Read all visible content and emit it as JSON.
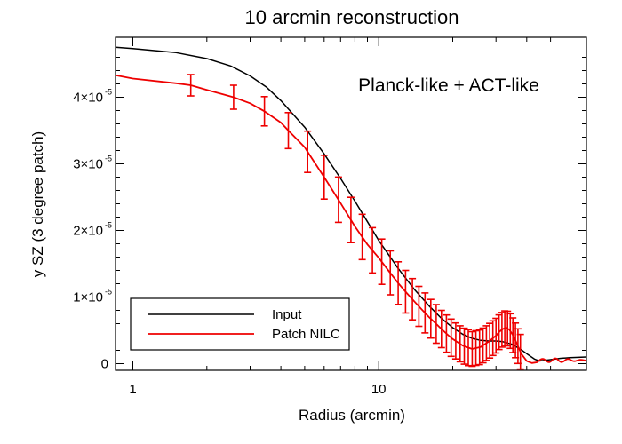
{
  "chart_data": {
    "type": "line",
    "title": "10 arcmin reconstruction",
    "xlabel": "Radius (arcmin)",
    "ylabel": "y SZ (3 degree patch)",
    "xscale": "log",
    "xlim": [
      0.85,
      70
    ],
    "ylim": [
      -1e-06,
      4.9e-05
    ],
    "x_ticks": [
      {
        "value": 1,
        "label": "1"
      },
      {
        "value": 10,
        "label": "10"
      }
    ],
    "y_ticks": [
      {
        "value": 0,
        "mantissa": "0",
        "exp": ""
      },
      {
        "value": 1e-05,
        "mantissa": "1×10",
        "exp": "-5"
      },
      {
        "value": 2e-05,
        "mantissa": "2×10",
        "exp": "-5"
      },
      {
        "value": 3e-05,
        "mantissa": "3×10",
        "exp": "-5"
      },
      {
        "value": 4e-05,
        "mantissa": "4×10",
        "exp": "-5"
      }
    ],
    "annotation": "Planck-like + ACT-like",
    "legend_position": "bottom-left",
    "series": [
      {
        "name": "Input",
        "color": "#000000",
        "x": [
          0.85,
          1.0,
          1.5,
          2.0,
          2.5,
          3.0,
          3.5,
          4.0,
          5.0,
          6.0,
          7.0,
          8.0,
          9.0,
          10.0,
          12.0,
          14.0,
          16.0,
          18.0,
          20.0,
          22.0,
          24.0,
          26.0,
          28.0,
          30.0,
          32.0,
          35.0,
          38.0,
          40.0,
          43.0,
          45.0,
          50.0,
          55.0,
          60.0,
          70.0
        ],
        "y": [
          4.75e-05,
          4.73e-05,
          4.67e-05,
          4.58e-05,
          4.47e-05,
          4.32e-05,
          4.15e-05,
          3.95e-05,
          3.55e-05,
          3.15e-05,
          2.78e-05,
          2.44e-05,
          2.13e-05,
          1.85e-05,
          1.43e-05,
          1.11e-05,
          8.7e-06,
          6.8e-06,
          5.4e-06,
          4.4e-06,
          3.8e-06,
          3.5e-06,
          3.4e-06,
          3.4e-06,
          3.3e-06,
          2.9e-06,
          2.1e-06,
          1.5e-06,
          7e-07,
          4e-07,
          6e-07,
          8e-07,
          9e-07,
          1e-06
        ]
      },
      {
        "name": "Patch NILC",
        "color": "#ee0000",
        "x": [
          0.85,
          1.0,
          1.5,
          1.72,
          2.0,
          2.57,
          3.0,
          3.43,
          4.0,
          4.29,
          5.0,
          5.14,
          6.0,
          7.0,
          8.0,
          9.0,
          10.0,
          11.0,
          12.0,
          13.0,
          14.0,
          15.0,
          16.0,
          17.0,
          18.0,
          19.0,
          20.0,
          22.0,
          24.0,
          26.0,
          28.0,
          30.0,
          31.0,
          32.0,
          33.0,
          34.0,
          35.0,
          36.0,
          38.0,
          40.0,
          42.0,
          44.0,
          47.0,
          50.0,
          53.0,
          55.0,
          57.0,
          60.0,
          65.0,
          70.0
        ],
        "y": [
          4.33e-05,
          4.28e-05,
          4.21e-05,
          4.18e-05,
          4.11e-05,
          4e-05,
          3.91e-05,
          3.79e-05,
          3.62e-05,
          3.5e-05,
          3.25e-05,
          3.18e-05,
          2.8e-05,
          2.41e-05,
          2.06e-05,
          1.79e-05,
          1.59e-05,
          1.39e-05,
          1.21e-05,
          1.06e-05,
          9.3e-06,
          8.1e-06,
          7e-06,
          6.1e-06,
          5.2e-06,
          4.4e-06,
          3.7e-06,
          2.7e-06,
          2.2e-06,
          2.5e-06,
          3.3e-06,
          4.2e-06,
          4.8e-06,
          5.2e-06,
          5.4e-06,
          5.1e-06,
          4.4e-06,
          3.5e-06,
          1.5e-06,
          4e-07,
          1e-07,
          2e-07,
          4e-07,
          6e-07,
          5e-07,
          4e-07,
          9e-07,
          8e-07,
          3e-07,
          5e-07
        ]
      }
    ],
    "error_bars": {
      "series": "Patch NILC",
      "x": [
        1.72,
        2.57,
        3.43,
        4.29,
        5.14,
        6.0,
        6.86,
        7.71,
        8.57,
        9.43,
        10.29,
        11.14,
        12.0,
        12.86,
        13.71,
        14.57,
        15.43,
        16.29,
        17.14,
        18.0,
        18.86,
        19.71,
        20.57,
        21.43,
        22.29,
        23.14,
        24.0,
        24.86,
        25.71,
        26.57,
        27.43,
        28.29,
        29.14,
        30.0,
        30.86,
        31.71,
        32.57,
        33.43,
        34.29,
        35.14,
        36.0,
        36.86,
        37.71
      ],
      "err": [
        1.6e-06,
        1.8e-06,
        2.2e-06,
        2.7e-06,
        3.1e-06,
        3.3e-06,
        3.4e-06,
        3.4e-06,
        3.4e-06,
        3.4e-06,
        3.4e-06,
        3.3e-06,
        3.2e-06,
        3.2e-06,
        3.1e-06,
        3e-06,
        3e-06,
        2.9e-06,
        2.9e-06,
        2.8e-06,
        2.8e-06,
        2.8e-06,
        2.7e-06,
        2.7e-06,
        2.7e-06,
        2.7e-06,
        2.6e-06,
        2.6e-06,
        2.6e-06,
        2.6e-06,
        2.6e-06,
        2.6e-06,
        2.6e-06,
        2.6e-06,
        2.6e-06,
        2.6e-06,
        2.6e-06,
        2.6e-06,
        2.6e-06,
        2.6e-06,
        2.6e-06,
        2.6e-06,
        2.6e-06
      ]
    },
    "tail_oscillation": {
      "series": "Patch NILC",
      "x_start": 45.0,
      "x_end": 70.0,
      "mean": 5e-07,
      "amplitude": 3e-07
    }
  }
}
